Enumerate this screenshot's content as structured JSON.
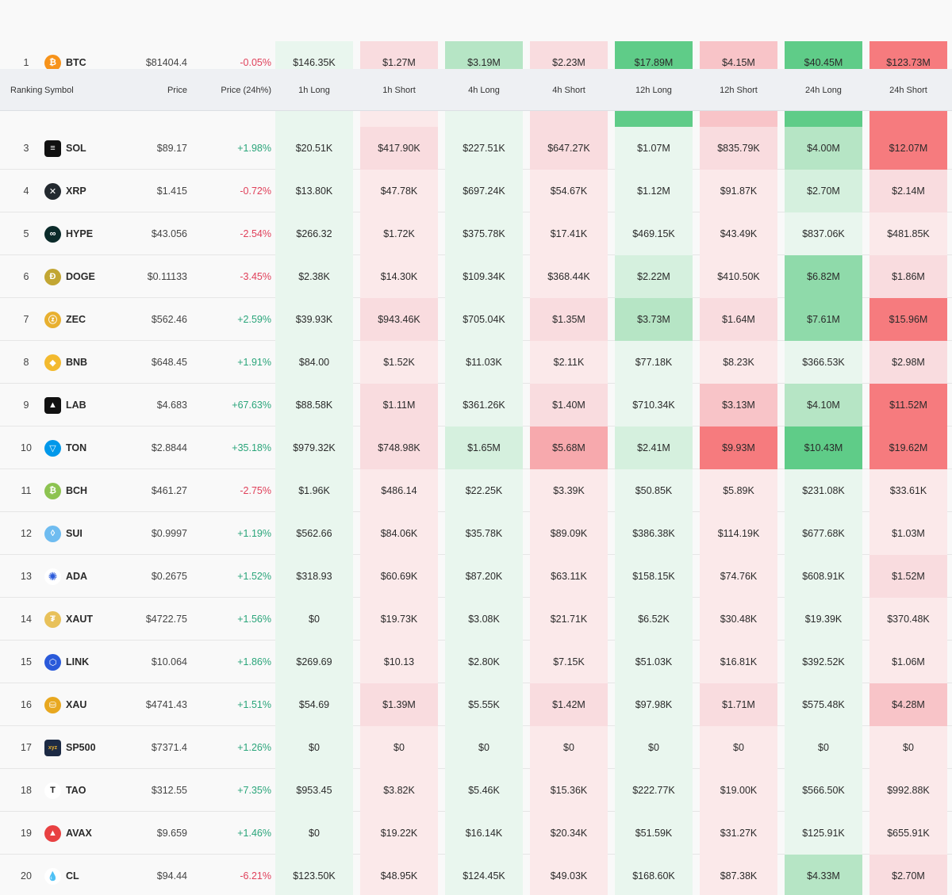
{
  "header": {
    "ranking": "Ranking",
    "symbol": "Symbol",
    "price": "Price",
    "change": "Price (24h%)",
    "cols": [
      "1h Long",
      "1h Short",
      "4h Long",
      "4h Short",
      "12h Long",
      "12h Short",
      "24h Long",
      "24h Short"
    ]
  },
  "colors": {
    "positive": "#2aa57a",
    "negative": "#e0405a",
    "long_scale": [
      "#e9f6ee",
      "#d5f0de",
      "#b6e5c5",
      "#8fdaaa",
      "#5fcc88"
    ],
    "short_scale": [
      "#fbe9ea",
      "#f9dcdf",
      "#f8c4c8",
      "#f7a9ad",
      "#f67b7e"
    ]
  },
  "rows": [
    {
      "rank": "1",
      "symbol": "BTC",
      "icon": "bitcoin-icon",
      "icon_bg": "#f7931a",
      "icon_glyph": "₿",
      "price": "$81404.4",
      "change": "-0.05%",
      "dir": "neg",
      "values": [
        "$146.35K",
        "$1.27M",
        "$3.19M",
        "$2.23M",
        "$17.89M",
        "$4.15M",
        "$40.45M",
        "$123.73M"
      ],
      "levels": [
        0,
        1,
        2,
        1,
        4,
        2,
        4,
        4
      ]
    },
    {
      "rank": "",
      "symbol": "",
      "icon": "",
      "price": "",
      "change": "",
      "dir": "pos",
      "values": [
        "",
        "",
        "",
        "",
        "",
        "",
        "",
        ""
      ],
      "levels": [
        0,
        0,
        0,
        1,
        4,
        2,
        4,
        4
      ]
    },
    {
      "rank": "3",
      "symbol": "SOL",
      "icon": "solana-icon",
      "icon_bg": "#111111",
      "icon_glyph": "≡",
      "price": "$89.17",
      "change": "+1.98%",
      "dir": "pos",
      "values": [
        "$20.51K",
        "$417.90K",
        "$227.51K",
        "$647.27K",
        "$1.07M",
        "$835.79K",
        "$4.00M",
        "$12.07M"
      ],
      "levels": [
        0,
        1,
        0,
        1,
        0,
        1,
        2,
        4
      ]
    },
    {
      "rank": "4",
      "symbol": "XRP",
      "icon": "xrp-icon",
      "icon_bg": "#23292f",
      "icon_glyph": "✕",
      "price": "$1.415",
      "change": "-0.72%",
      "dir": "neg",
      "values": [
        "$13.80K",
        "$47.78K",
        "$697.24K",
        "$54.67K",
        "$1.12M",
        "$91.87K",
        "$2.70M",
        "$2.14M"
      ],
      "levels": [
        0,
        0,
        0,
        0,
        0,
        0,
        1,
        1
      ]
    },
    {
      "rank": "5",
      "symbol": "HYPE",
      "icon": "hyperliquid-icon",
      "icon_bg": "#0b2b2a",
      "icon_glyph": "∞",
      "price": "$43.056",
      "change": "-2.54%",
      "dir": "neg",
      "values": [
        "$266.32",
        "$1.72K",
        "$375.78K",
        "$17.41K",
        "$469.15K",
        "$43.49K",
        "$837.06K",
        "$481.85K"
      ],
      "levels": [
        0,
        0,
        0,
        0,
        0,
        0,
        0,
        0
      ]
    },
    {
      "rank": "6",
      "symbol": "DOGE",
      "icon": "dogecoin-icon",
      "icon_bg": "#c2a633",
      "icon_glyph": "Ð",
      "price": "$0.11133",
      "change": "-3.45%",
      "dir": "neg",
      "values": [
        "$2.38K",
        "$14.30K",
        "$109.34K",
        "$368.44K",
        "$2.22M",
        "$410.50K",
        "$6.82M",
        "$1.86M"
      ],
      "levels": [
        0,
        0,
        0,
        0,
        1,
        0,
        3,
        1
      ]
    },
    {
      "rank": "7",
      "symbol": "ZEC",
      "icon": "zcash-icon",
      "icon_bg": "#e8b030",
      "icon_glyph": "ⓩ",
      "price": "$562.46",
      "change": "+2.59%",
      "dir": "pos",
      "values": [
        "$39.93K",
        "$943.46K",
        "$705.04K",
        "$1.35M",
        "$3.73M",
        "$1.64M",
        "$7.61M",
        "$15.96M"
      ],
      "levels": [
        0,
        1,
        0,
        1,
        2,
        1,
        3,
        4
      ]
    },
    {
      "rank": "8",
      "symbol": "BNB",
      "icon": "bnb-icon",
      "icon_bg": "#f3ba2f",
      "icon_glyph": "◆",
      "price": "$648.45",
      "change": "+1.91%",
      "dir": "pos",
      "values": [
        "$84.00",
        "$1.52K",
        "$11.03K",
        "$2.11K",
        "$77.18K",
        "$8.23K",
        "$366.53K",
        "$2.98M"
      ],
      "levels": [
        0,
        0,
        0,
        0,
        0,
        0,
        0,
        1
      ]
    },
    {
      "rank": "9",
      "symbol": "LAB",
      "icon": "lab-icon",
      "icon_bg": "#111111",
      "icon_glyph": "▲",
      "price": "$4.683",
      "change": "+67.63%",
      "dir": "pos",
      "values": [
        "$88.58K",
        "$1.11M",
        "$361.26K",
        "$1.40M",
        "$710.34K",
        "$3.13M",
        "$4.10M",
        "$11.52M"
      ],
      "levels": [
        0,
        1,
        0,
        1,
        0,
        2,
        2,
        4
      ]
    },
    {
      "rank": "10",
      "symbol": "TON",
      "icon": "ton-icon",
      "icon_bg": "#0098ea",
      "icon_glyph": "▽",
      "price": "$2.8844",
      "change": "+35.18%",
      "dir": "pos",
      "values": [
        "$979.32K",
        "$748.98K",
        "$1.65M",
        "$5.68M",
        "$2.41M",
        "$9.93M",
        "$10.43M",
        "$19.62M"
      ],
      "levels": [
        0,
        1,
        1,
        3,
        1,
        4,
        4,
        4
      ]
    },
    {
      "rank": "11",
      "symbol": "BCH",
      "icon": "bitcoin-cash-icon",
      "icon_bg": "#8dc351",
      "icon_glyph": "₿",
      "price": "$461.27",
      "change": "-2.75%",
      "dir": "neg",
      "values": [
        "$1.96K",
        "$486.14",
        "$22.25K",
        "$3.39K",
        "$50.85K",
        "$5.89K",
        "$231.08K",
        "$33.61K"
      ],
      "levels": [
        0,
        0,
        0,
        0,
        0,
        0,
        0,
        0
      ]
    },
    {
      "rank": "12",
      "symbol": "SUI",
      "icon": "sui-icon",
      "icon_bg": "#6fbcf0",
      "icon_glyph": "◊",
      "price": "$0.9997",
      "change": "+1.19%",
      "dir": "pos",
      "values": [
        "$562.66",
        "$84.06K",
        "$35.78K",
        "$89.09K",
        "$386.38K",
        "$114.19K",
        "$677.68K",
        "$1.03M"
      ],
      "levels": [
        0,
        0,
        0,
        0,
        0,
        0,
        0,
        0
      ]
    },
    {
      "rank": "13",
      "symbol": "ADA",
      "icon": "cardano-icon",
      "icon_bg": "#ffffff",
      "icon_glyph": "✺",
      "price": "$0.2675",
      "change": "+1.52%",
      "dir": "pos",
      "values": [
        "$318.93",
        "$60.69K",
        "$87.20K",
        "$63.11K",
        "$158.15K",
        "$74.76K",
        "$608.91K",
        "$1.52M"
      ],
      "levels": [
        0,
        0,
        0,
        0,
        0,
        0,
        0,
        1
      ]
    },
    {
      "rank": "14",
      "symbol": "XAUT",
      "icon": "tether-gold-icon",
      "icon_bg": "#e8c15a",
      "icon_glyph": "₮",
      "price": "$4722.75",
      "change": "+1.56%",
      "dir": "pos",
      "values": [
        "$0",
        "$19.73K",
        "$3.08K",
        "$21.71K",
        "$6.52K",
        "$30.48K",
        "$19.39K",
        "$370.48K"
      ],
      "levels": [
        0,
        0,
        0,
        0,
        0,
        0,
        0,
        0
      ]
    },
    {
      "rank": "15",
      "symbol": "LINK",
      "icon": "chainlink-icon",
      "icon_bg": "#2a5ada",
      "icon_glyph": "⬡",
      "price": "$10.064",
      "change": "+1.86%",
      "dir": "pos",
      "values": [
        "$269.69",
        "$10.13",
        "$2.80K",
        "$7.15K",
        "$51.03K",
        "$16.81K",
        "$392.52K",
        "$1.06M"
      ],
      "levels": [
        0,
        0,
        0,
        0,
        0,
        0,
        0,
        0
      ]
    },
    {
      "rank": "16",
      "symbol": "XAU",
      "icon": "gold-icon",
      "icon_bg": "#e8a820",
      "icon_glyph": "⛁",
      "price": "$4741.43",
      "change": "+1.51%",
      "dir": "pos",
      "values": [
        "$54.69",
        "$1.39M",
        "$5.55K",
        "$1.42M",
        "$97.98K",
        "$1.71M",
        "$575.48K",
        "$4.28M"
      ],
      "levels": [
        0,
        1,
        0,
        1,
        0,
        1,
        0,
        2
      ]
    },
    {
      "rank": "17",
      "symbol": "SP500",
      "icon": "sp500-icon",
      "icon_bg": "#1c2a44",
      "icon_glyph": "xyz",
      "price": "$7371.4",
      "change": "+1.26%",
      "dir": "pos",
      "values": [
        "$0",
        "$0",
        "$0",
        "$0",
        "$0",
        "$0",
        "$0",
        "$0"
      ],
      "levels": [
        0,
        0,
        0,
        0,
        0,
        0,
        0,
        0
      ]
    },
    {
      "rank": "18",
      "symbol": "TAO",
      "icon": "bittensor-icon",
      "icon_bg": "#ffffff",
      "icon_glyph": "T",
      "price": "$312.55",
      "change": "+7.35%",
      "dir": "pos",
      "values": [
        "$953.45",
        "$3.82K",
        "$5.46K",
        "$15.36K",
        "$222.77K",
        "$19.00K",
        "$566.50K",
        "$992.88K"
      ],
      "levels": [
        0,
        0,
        0,
        0,
        0,
        0,
        0,
        0
      ]
    },
    {
      "rank": "19",
      "symbol": "AVAX",
      "icon": "avalanche-icon",
      "icon_bg": "#e84142",
      "icon_glyph": "▲",
      "price": "$9.659",
      "change": "+1.46%",
      "dir": "pos",
      "values": [
        "$0",
        "$19.22K",
        "$16.14K",
        "$20.34K",
        "$51.59K",
        "$31.27K",
        "$125.91K",
        "$655.91K"
      ],
      "levels": [
        0,
        0,
        0,
        0,
        0,
        0,
        0,
        0
      ]
    },
    {
      "rank": "20",
      "symbol": "CL",
      "icon": "crude-oil-icon",
      "icon_bg": "#ffffff",
      "icon_glyph": "💧",
      "price": "$94.44",
      "change": "-6.21%",
      "dir": "neg",
      "values": [
        "$123.50K",
        "$48.95K",
        "$124.45K",
        "$49.03K",
        "$168.60K",
        "$87.38K",
        "$4.33M",
        "$2.70M"
      ],
      "levels": [
        0,
        0,
        0,
        0,
        0,
        0,
        2,
        1
      ]
    }
  ]
}
